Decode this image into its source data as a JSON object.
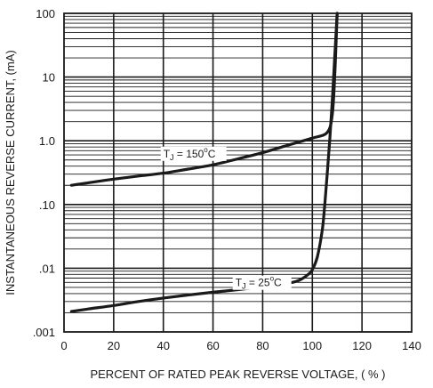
{
  "chart_data": {
    "type": "line",
    "title": "",
    "xlabel": "PERCENT OF RATED PEAK REVERSE VOLTAGE, ( % )",
    "ylabel": "INSTANTANEOUS REVERSE CURRENT, (mA)",
    "xlim": [
      0,
      140
    ],
    "ylim": [
      0.001,
      100
    ],
    "y_scale": "log",
    "grid": true,
    "x_ticks": [
      0,
      20,
      40,
      60,
      80,
      100,
      120,
      140
    ],
    "x_tick_labels": [
      "0",
      "20",
      "40",
      "60",
      "80",
      "100",
      "120",
      "140"
    ],
    "y_ticks": [
      0.001,
      0.01,
      0.1,
      1,
      10,
      100
    ],
    "y_tick_labels": [
      ".001",
      ".01",
      ".10",
      "1.0",
      "10",
      "100"
    ],
    "series": [
      {
        "name": "TJ = 150°C",
        "label_parts": {
          "base": "T",
          "sub": "J",
          "mid": " = 150",
          "sup": "o",
          "end": "C"
        },
        "label_anchor": [
          40,
          0.55
        ],
        "points": [
          [
            3,
            0.2
          ],
          [
            10,
            0.22
          ],
          [
            20,
            0.25
          ],
          [
            30,
            0.28
          ],
          [
            40,
            0.31
          ],
          [
            50,
            0.36
          ],
          [
            60,
            0.42
          ],
          [
            70,
            0.52
          ],
          [
            80,
            0.65
          ],
          [
            90,
            0.85
          ],
          [
            100,
            1.1
          ],
          [
            106,
            1.35
          ],
          [
            108,
            2.5
          ],
          [
            109,
            10
          ],
          [
            110,
            100
          ]
        ]
      },
      {
        "name": "TJ = 25°C",
        "label_parts": {
          "base": "T",
          "sub": "J",
          "mid": " = 25",
          "sup": "o",
          "end": "C"
        },
        "label_anchor": [
          69,
          0.0052
        ],
        "points": [
          [
            3,
            0.0021
          ],
          [
            10,
            0.0023
          ],
          [
            20,
            0.0026
          ],
          [
            30,
            0.003
          ],
          [
            40,
            0.0034
          ],
          [
            50,
            0.0038
          ],
          [
            60,
            0.0042
          ],
          [
            70,
            0.0046
          ],
          [
            80,
            0.0051
          ],
          [
            88,
            0.0056
          ],
          [
            94,
            0.0063
          ],
          [
            98,
            0.0078
          ],
          [
            100,
            0.0095
          ],
          [
            102,
            0.015
          ],
          [
            104,
            0.04
          ],
          [
            105,
            0.1
          ],
          [
            106,
            0.3
          ],
          [
            107,
            1.0
          ],
          [
            108,
            4
          ],
          [
            109,
            20
          ],
          [
            110,
            100
          ]
        ]
      }
    ]
  }
}
